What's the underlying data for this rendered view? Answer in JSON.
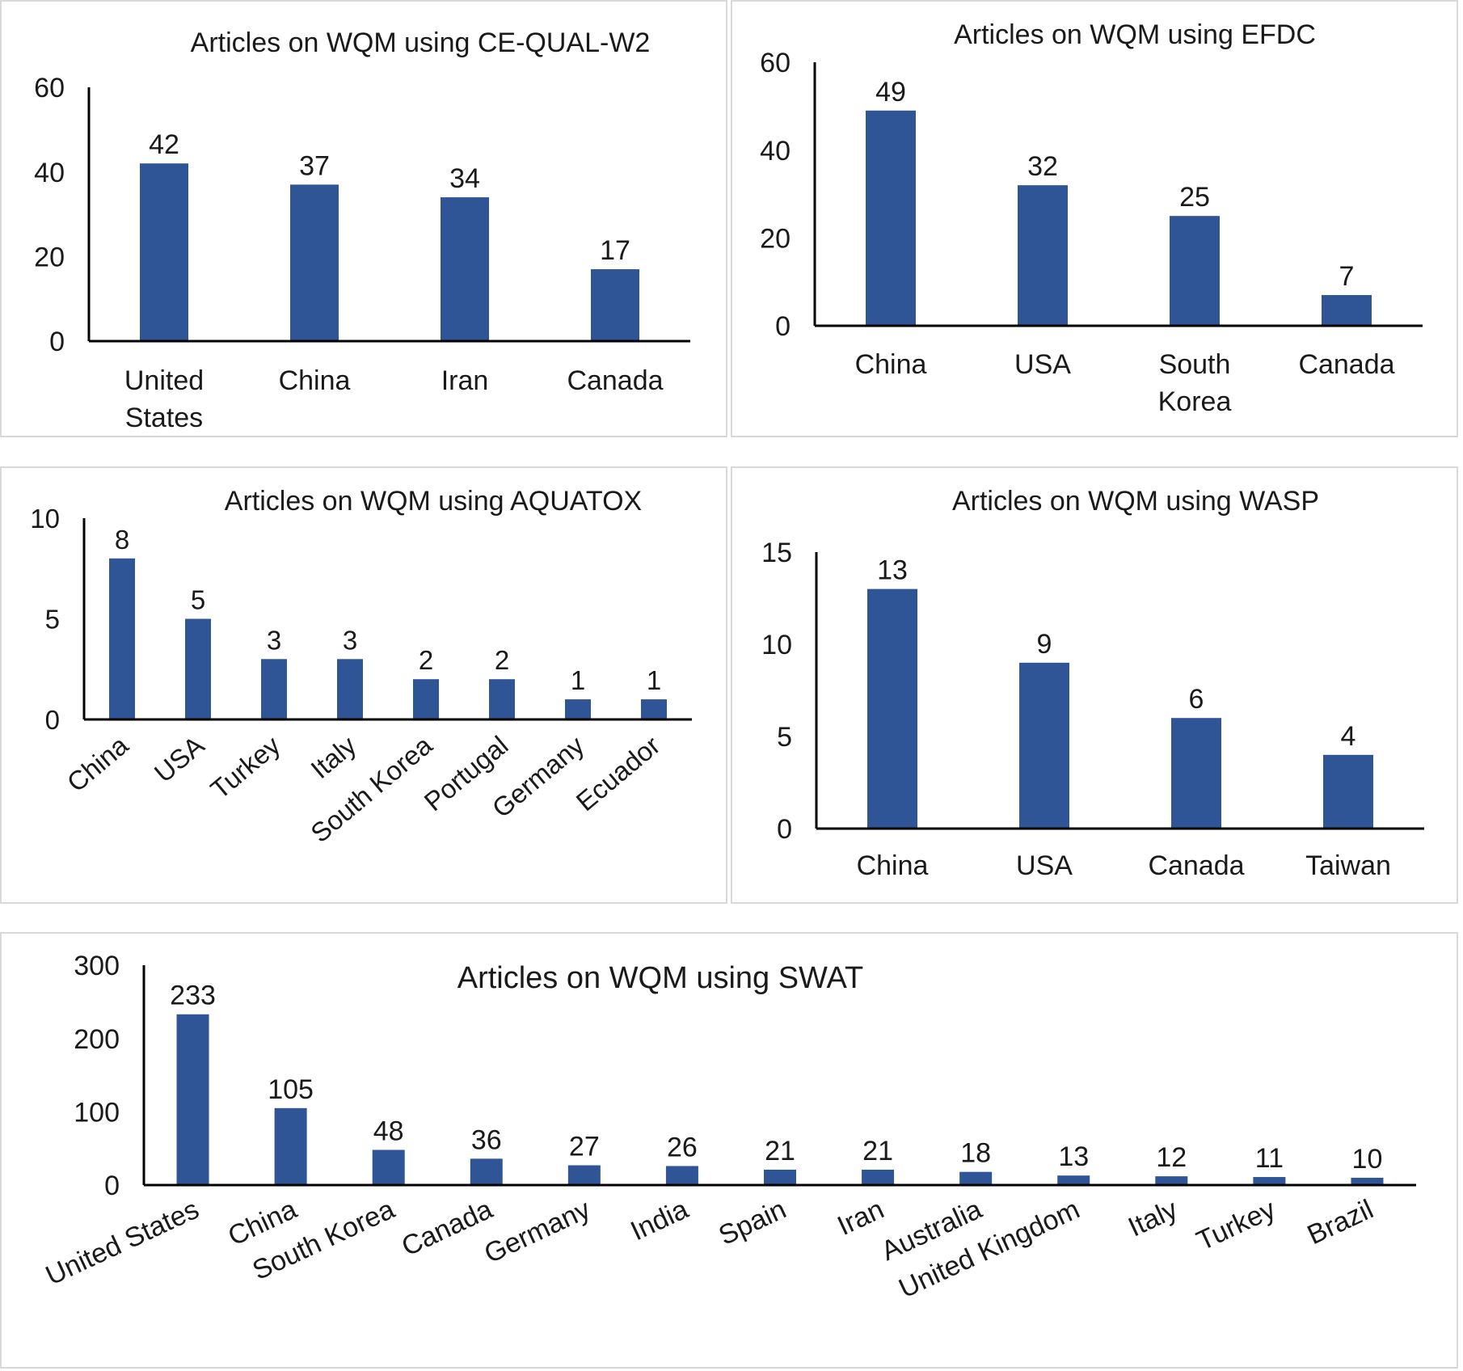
{
  "colors": {
    "bar": "#2F5597",
    "axis": "#000000",
    "text": "#1a1a1a",
    "panel_border": "#d9d9d9"
  },
  "chart_data": [
    {
      "type": "bar",
      "title": "Articles on WQM using CE-QUAL-W2",
      "categories": [
        "United States",
        "China",
        "Iran",
        "Canada"
      ],
      "values": [
        42,
        37,
        34,
        17
      ],
      "ylim": [
        0,
        60
      ],
      "yticks": [
        0,
        20,
        40,
        60
      ],
      "xlabel": "",
      "ylabel": "",
      "grid": false,
      "legend": "none"
    },
    {
      "type": "bar",
      "title": "Articles on WQM using EFDC",
      "categories": [
        "China",
        "USA",
        "South Korea",
        "Canada"
      ],
      "values": [
        49,
        32,
        25,
        7
      ],
      "ylim": [
        0,
        60
      ],
      "yticks": [
        0,
        20,
        40,
        60
      ],
      "xlabel": "",
      "ylabel": "",
      "grid": false,
      "legend": "none"
    },
    {
      "type": "bar",
      "title": "Articles on WQM using AQUATOX",
      "categories": [
        "China",
        "USA",
        "Turkey",
        "Italy",
        "South Korea",
        "Portugal",
        "Germany",
        "Ecuador"
      ],
      "values": [
        8,
        5,
        3,
        3,
        2,
        2,
        1,
        1
      ],
      "ylim": [
        0,
        10
      ],
      "yticks": [
        0,
        5,
        10
      ],
      "xlabel": "",
      "ylabel": "",
      "grid": false,
      "legend": "none"
    },
    {
      "type": "bar",
      "title": "Articles on WQM using WASP",
      "categories": [
        "China",
        "USA",
        "Canada",
        "Taiwan"
      ],
      "values": [
        13,
        9,
        6,
        4
      ],
      "ylim": [
        0,
        15
      ],
      "yticks": [
        0,
        5,
        10,
        15
      ],
      "xlabel": "",
      "ylabel": "",
      "grid": false,
      "legend": "none"
    },
    {
      "type": "bar",
      "title": "Articles on WQM using SWAT",
      "categories": [
        "United States",
        "China",
        "South Korea",
        "Canada",
        "Germany",
        "India",
        "Spain",
        "Iran",
        "Australia",
        "United Kingdom",
        "Italy",
        "Turkey",
        "Brazil"
      ],
      "values": [
        233,
        105,
        48,
        36,
        27,
        26,
        21,
        21,
        18,
        13,
        12,
        11,
        10
      ],
      "ylim": [
        0,
        300
      ],
      "yticks": [
        0,
        100,
        200,
        300
      ],
      "xlabel": "",
      "ylabel": "",
      "grid": false,
      "legend": "none"
    }
  ]
}
